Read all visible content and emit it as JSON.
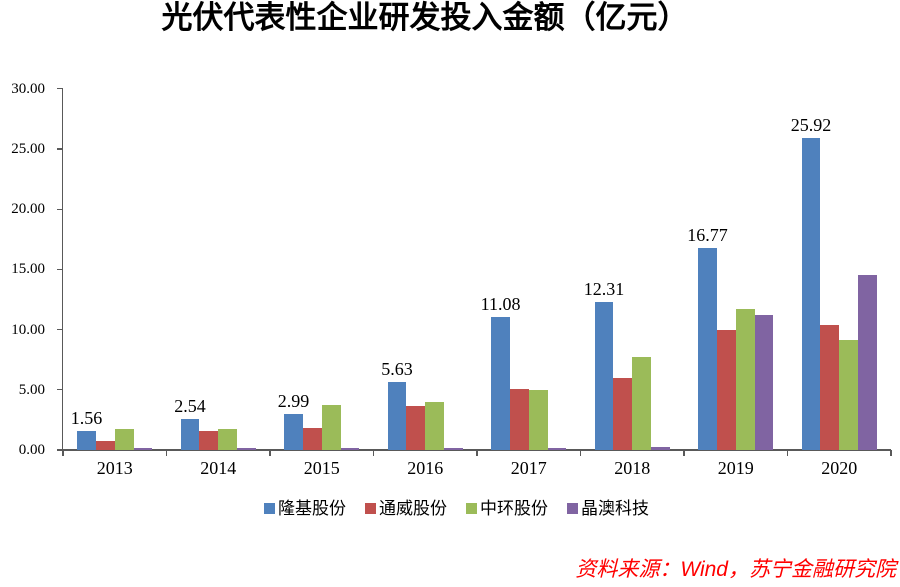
{
  "title": "光伏代表性企业研发投入金额（亿元）",
  "source_note": "资料来源：Wind，苏宁金融研究院",
  "chart_data": {
    "type": "bar",
    "title": "光伏代表性企业研发投入金额（亿元）",
    "xlabel": "",
    "ylabel": "",
    "ylim": [
      0,
      30
    ],
    "ytick_step": 5,
    "ytick_labels": [
      "0.00",
      "5.00",
      "10.00",
      "15.00",
      "20.00",
      "25.00",
      "30.00"
    ],
    "grid": false,
    "legend_position": "bottom",
    "categories": [
      "2013",
      "2014",
      "2015",
      "2016",
      "2017",
      "2018",
      "2019",
      "2020"
    ],
    "series": [
      {
        "name": "隆基股份",
        "color": "#4F81BD",
        "values": [
          1.56,
          2.54,
          2.99,
          5.63,
          11.08,
          12.31,
          16.77,
          25.92
        ],
        "value_labels": [
          "1.56",
          "2.54",
          "2.99",
          "5.63",
          "11.08",
          "12.31",
          "16.77",
          "25.92"
        ]
      },
      {
        "name": "通威股份",
        "color": "#C0504D",
        "values": [
          0.75,
          1.6,
          1.85,
          3.65,
          5.1,
          5.95,
          10.0,
          10.4
        ]
      },
      {
        "name": "中环股份",
        "color": "#9BBB59",
        "values": [
          1.75,
          1.75,
          3.7,
          3.95,
          4.95,
          7.75,
          11.7,
          9.1
        ]
      },
      {
        "name": "晶澳科技",
        "color": "#8064A2",
        "values": [
          0.2,
          0.15,
          0.15,
          0.2,
          0.2,
          0.25,
          11.2,
          14.55
        ]
      }
    ]
  },
  "colors": {
    "axis": "#595959",
    "text": "#000000",
    "source_note": "#ff0000",
    "background": "#ffffff"
  }
}
